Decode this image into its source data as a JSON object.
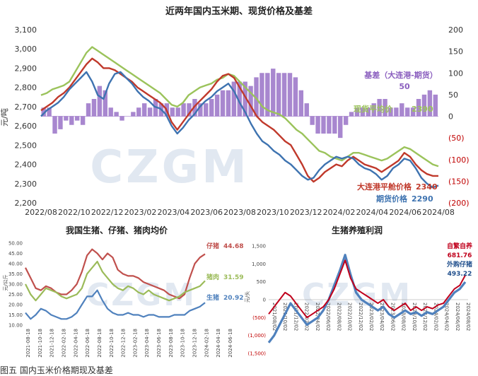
{
  "caption": "图五 国内玉米价格期现及基差",
  "watermark": "CZGM",
  "colors": {
    "basis": "#8b5fbf",
    "spot": "#9bc35b",
    "port": "#c0392b",
    "futures": "#3e73b0",
    "hog": "#c0504d",
    "piglet": "#9bbb59",
    "pork": "#4f81bd",
    "selfbred": "#c0001c",
    "purchased": "#4f81bd"
  },
  "chart_data": [
    {
      "type": "line",
      "title": "近两年国内玉米期、现货价格及基差",
      "ylabel": "元/吨",
      "ylim": [
        2200,
        3100
      ],
      "yticks": [
        "3,100",
        "3,000",
        "2,900",
        "2,800",
        "2,700",
        "2,600",
        "2,500",
        "2,400",
        "2,300",
        "2,200"
      ],
      "y2lim": [
        -200,
        200
      ],
      "y2ticks": [
        "200",
        "150",
        "100",
        "50",
        "0",
        "(50)",
        "(100)",
        "(150)",
        "(200)"
      ],
      "xticks": [
        "2022/08",
        "2022/10",
        "2022/12",
        "2023/02",
        "2023/04",
        "2023/06",
        "2023/08",
        "2023/10",
        "2023/12",
        "2024/02",
        "2024/04",
        "2024/06",
        "2024/08"
      ],
      "legend_position": "right",
      "series": [
        {
          "name": "现货平均价",
          "last_value": "2390",
          "values": [
            2760,
            2770,
            2790,
            2800,
            2810,
            2830,
            2880,
            2930,
            2980,
            3010,
            2990,
            2970,
            2950,
            2930,
            2910,
            2890,
            2870,
            2850,
            2830,
            2810,
            2790,
            2770,
            2740,
            2710,
            2700,
            2720,
            2760,
            2780,
            2800,
            2810,
            2820,
            2840,
            2850,
            2870,
            2860,
            2830,
            2800,
            2770,
            2740,
            2700,
            2680,
            2670,
            2660,
            2640,
            2610,
            2580,
            2560,
            2530,
            2500,
            2470,
            2460,
            2440,
            2430,
            2420,
            2440,
            2460,
            2460,
            2450,
            2440,
            2430,
            2420,
            2430,
            2450,
            2470,
            2490,
            2480,
            2460,
            2440,
            2420,
            2400,
            2390
          ]
        },
        {
          "name": "大连港平舱价格",
          "last_value": "2340",
          "values": [
            2680,
            2700,
            2720,
            2750,
            2770,
            2800,
            2840,
            2880,
            2920,
            2950,
            2930,
            2900,
            2900,
            2890,
            2870,
            2850,
            2830,
            2800,
            2780,
            2760,
            2740,
            2720,
            2690,
            2620,
            2580,
            2620,
            2660,
            2700,
            2730,
            2760,
            2790,
            2830,
            2860,
            2870,
            2850,
            2800,
            2750,
            2700,
            2650,
            2620,
            2600,
            2580,
            2550,
            2520,
            2500,
            2450,
            2400,
            2340,
            2310,
            2330,
            2360,
            2380,
            2400,
            2390,
            2420,
            2440,
            2420,
            2400,
            2390,
            2380,
            2360,
            2380,
            2400,
            2420,
            2460,
            2440,
            2400,
            2370,
            2350,
            2340,
            2340
          ]
        },
        {
          "name": "期货价格",
          "last_value": "2290",
          "values": [
            2650,
            2680,
            2700,
            2720,
            2750,
            2790,
            2820,
            2850,
            2880,
            2830,
            2760,
            2740,
            2820,
            2870,
            2880,
            2850,
            2820,
            2780,
            2750,
            2730,
            2700,
            2690,
            2660,
            2600,
            2560,
            2590,
            2630,
            2660,
            2700,
            2730,
            2750,
            2780,
            2800,
            2820,
            2780,
            2720,
            2670,
            2610,
            2560,
            2520,
            2500,
            2470,
            2450,
            2420,
            2400,
            2370,
            2340,
            2320,
            2330,
            2370,
            2400,
            2420,
            2440,
            2430,
            2440,
            2430,
            2400,
            2380,
            2370,
            2350,
            2320,
            2340,
            2380,
            2400,
            2430,
            2420,
            2380,
            2330,
            2300,
            2280,
            2290
          ]
        },
        {
          "name": "基差（大连港-期货）",
          "last_value": "50",
          "axis": "right",
          "values": [
            20,
            20,
            -40,
            -30,
            -10,
            -20,
            -10,
            -20,
            30,
            40,
            70,
            60,
            20,
            10,
            -10,
            0,
            10,
            20,
            30,
            20,
            40,
            30,
            30,
            20,
            20,
            30,
            30,
            40,
            30,
            30,
            40,
            50,
            60,
            60,
            80,
            80,
            80,
            70,
            90,
            100,
            100,
            110,
            100,
            100,
            100,
            90,
            60,
            30,
            -20,
            -40,
            -40,
            -40,
            -40,
            -50,
            -20,
            10,
            20,
            20,
            20,
            30,
            40,
            40,
            20,
            20,
            30,
            20,
            20,
            40,
            50,
            60,
            50
          ]
        }
      ]
    },
    {
      "type": "line",
      "title": "我国生猪、仔猪、猪肉均价",
      "ylabel": "元/公斤",
      "ylim": [
        10,
        50
      ],
      "yticks": [
        "50.00",
        "45.00",
        "40.00",
        "35.00",
        "30.00",
        "25.00",
        "20.00",
        "15.00",
        "10.00"
      ],
      "xticks": [
        "2021-08-18",
        "2021-10-18",
        "2021-12-18",
        "2022-02-18",
        "2022-04-18",
        "2022-06-18",
        "2022-08-18",
        "2022-10-18",
        "2022-12-18",
        "2023-02-18",
        "2023-04-18",
        "2023-06-18",
        "2023-08-18",
        "2023-10-18",
        "2023-12-18",
        "2024-02-18",
        "2024-04-18",
        "2024-06-18"
      ],
      "series": [
        {
          "name": "仔猪",
          "last_value": "44.68",
          "values": [
            38,
            33,
            28,
            27,
            29,
            28,
            26,
            25,
            25,
            27,
            30,
            36,
            44,
            47,
            45,
            42,
            45,
            43,
            37,
            35,
            34,
            34,
            33,
            31,
            30,
            29,
            28,
            27,
            25,
            24,
            23,
            25,
            33,
            40,
            43,
            44.68
          ]
        },
        {
          "name": "猪肉",
          "last_value": "31.59",
          "values": [
            30,
            25,
            22,
            25,
            28,
            27,
            26,
            24,
            23,
            24,
            25,
            28,
            35,
            38,
            41,
            36,
            33,
            30,
            28,
            27,
            29,
            28,
            26,
            25,
            27,
            25,
            24,
            23,
            22,
            23,
            24,
            26,
            27,
            28,
            29,
            31.59
          ]
        },
        {
          "name": "生猪",
          "last_value": "20.92",
          "values": [
            16,
            13,
            15,
            18,
            17,
            15,
            14,
            13,
            13,
            14,
            16,
            20,
            24,
            24,
            27,
            22,
            18,
            16,
            15,
            15,
            16,
            15,
            15,
            14,
            15,
            15,
            14,
            14,
            14,
            15,
            15,
            15,
            17,
            18,
            19,
            20.92
          ]
        }
      ]
    },
    {
      "type": "line",
      "title": "生猪养殖利润",
      "ylabel": "元/头",
      "ylim": [
        -1500,
        1500
      ],
      "yticks": [
        "1,500",
        "1,000",
        "500",
        "0",
        "(500)",
        "(1,000)",
        "(1,500)"
      ],
      "xticks": [
        "2021/08/02",
        "2021/10/02",
        "2021/12/02",
        "2022/02/02",
        "2022/04/02",
        "2022/06/02",
        "2022/08/02",
        "2022/10/02",
        "2022/12/02",
        "2023/02/02",
        "2023/04/02",
        "2023/06/02",
        "2023/08/02",
        "2023/10/02",
        "2023/12/02",
        "2024/02/02",
        "2024/04/02",
        "2024/06/02",
        "2024/08/02"
      ],
      "series": [
        {
          "name": "自繁自养",
          "last_value": "681.76",
          "values": [
            -400,
            -200,
            0,
            200,
            100,
            -100,
            -300,
            -500,
            -400,
            -300,
            -200,
            0,
            300,
            700,
            1100,
            600,
            300,
            200,
            100,
            0,
            -100,
            0,
            -200,
            -300,
            -200,
            -100,
            -300,
            -200,
            -300,
            -200,
            -250,
            -150,
            -100,
            100,
            300,
            400,
            681.76
          ]
        },
        {
          "name": "外购仔猪",
          "last_value": "493.22",
          "values": [
            -1200,
            -1000,
            -700,
            -400,
            -100,
            -300,
            -500,
            -700,
            -600,
            -500,
            -300,
            0,
            400,
            800,
            1250,
            700,
            200,
            0,
            -100,
            -200,
            -300,
            -200,
            -400,
            -500,
            -400,
            -300,
            -400,
            -350,
            -450,
            -350,
            -400,
            -300,
            -200,
            0,
            200,
            300,
            493.22
          ]
        }
      ]
    }
  ]
}
